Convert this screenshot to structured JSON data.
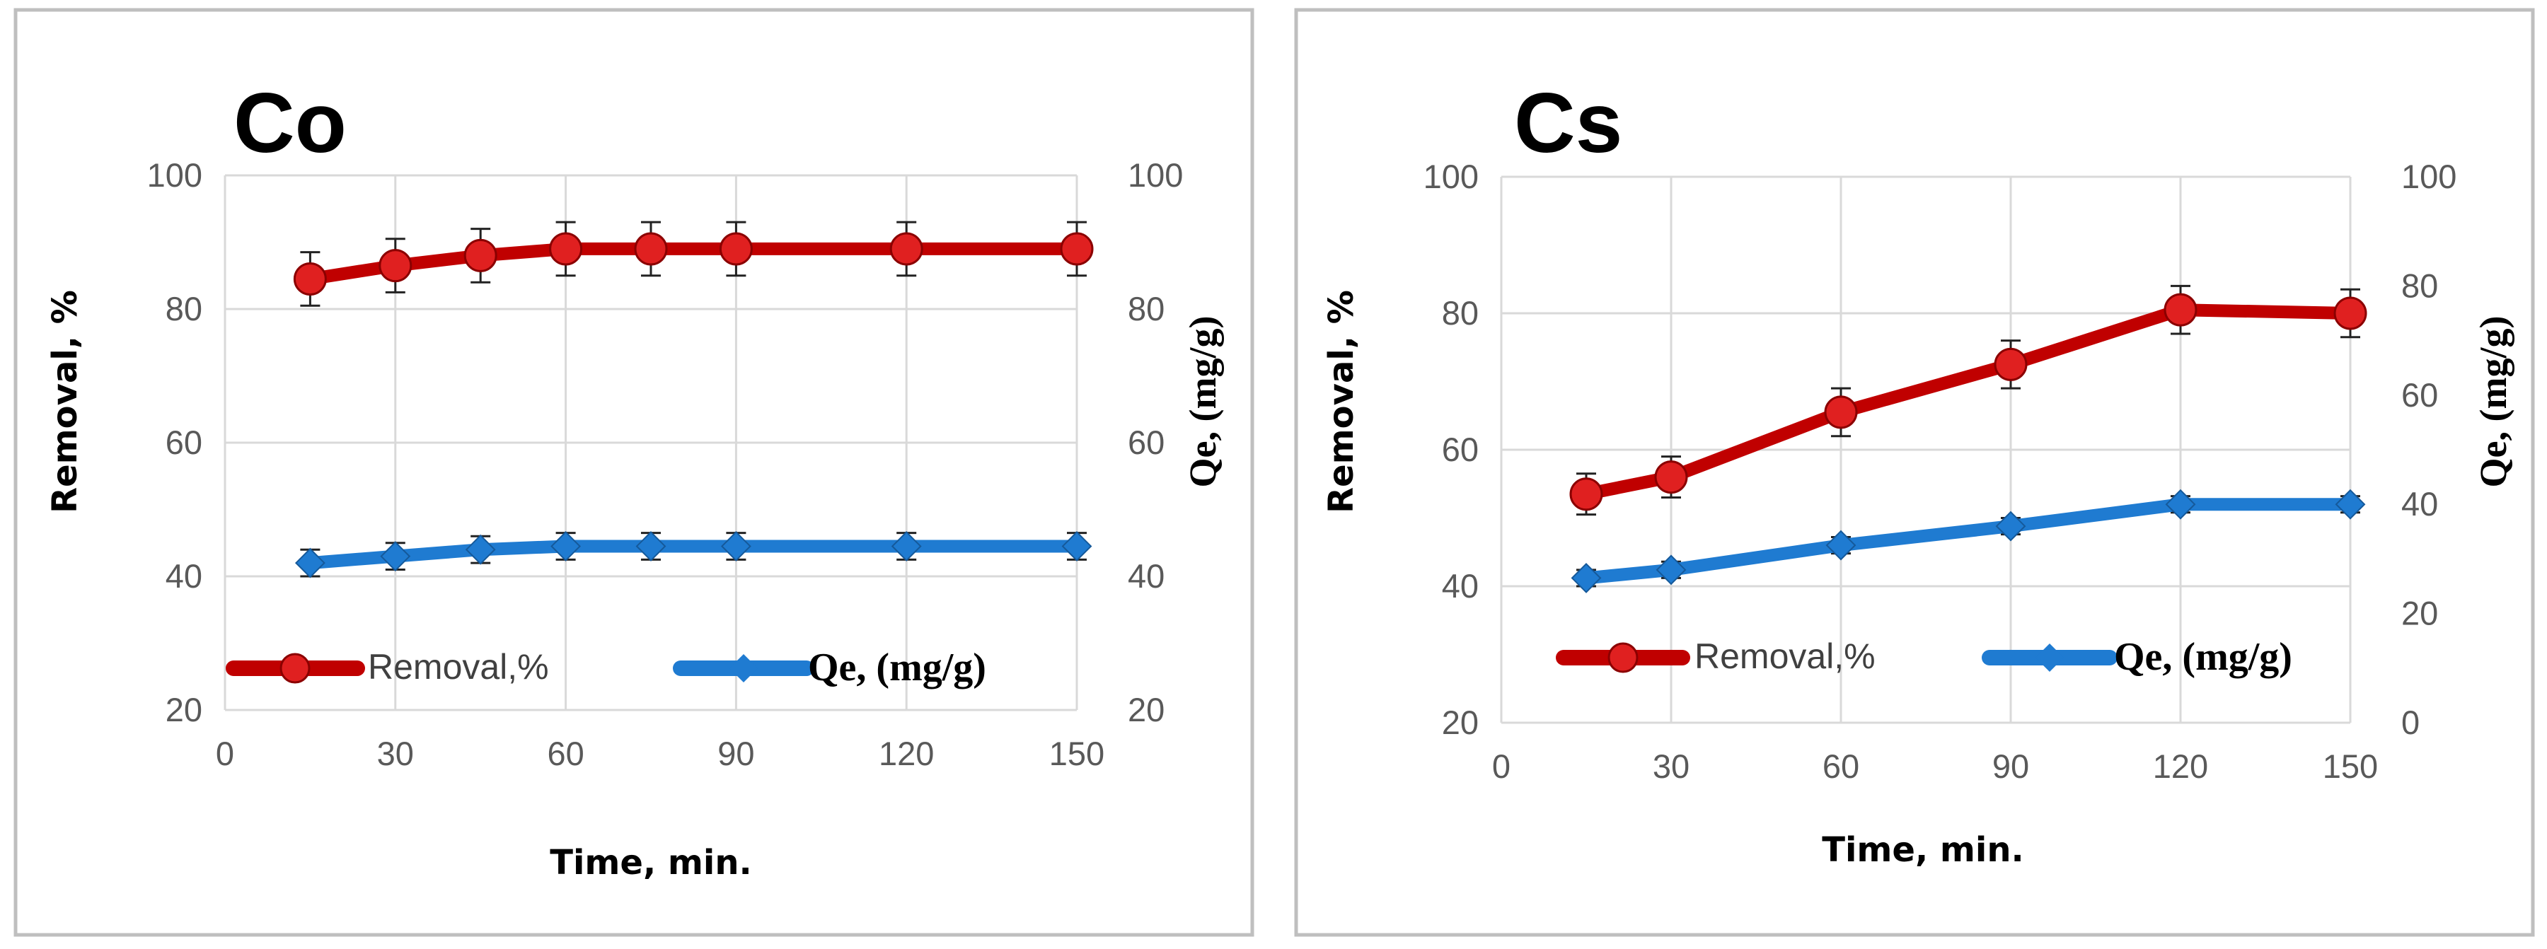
{
  "colors": {
    "removal": "#c00000",
    "removal_marker": "#e02020",
    "qe": "#1f7bd1",
    "grid": "#d9d9d9",
    "frame": "#bfbfbf"
  },
  "chart_data": [
    {
      "type": "line",
      "title": "Co",
      "xlabel": "Time, min.",
      "ylabel": "Removal, %",
      "y2label": "Qe, (mg/g)",
      "xlim": [
        0,
        150
      ],
      "ylim": [
        20,
        100
      ],
      "y2lim": [
        20,
        100
      ],
      "xticks": [
        "0",
        "30",
        "60",
        "90",
        "120",
        "150"
      ],
      "yticks": [
        "20",
        "40",
        "60",
        "80",
        "100"
      ],
      "y2ticks": [
        "20",
        "40",
        "60",
        "80",
        "100"
      ],
      "xtick_values": [
        0,
        30,
        60,
        90,
        120,
        150
      ],
      "ytick_values": [
        20,
        40,
        60,
        80,
        100
      ],
      "y2tick_values": [
        20,
        40,
        60,
        80,
        100
      ],
      "legend": {
        "position": "bottom",
        "removal_label": "Removal,%",
        "qe_label": "Qe, (mg/g)"
      },
      "series": [
        {
          "name": "Removal,%",
          "axis": "left",
          "x": [
            15,
            30,
            45,
            60,
            75,
            90,
            120,
            150
          ],
          "values": [
            84.5,
            86.5,
            88,
            89,
            89,
            89,
            89,
            89
          ],
          "errors": [
            4,
            4,
            4,
            4,
            4,
            4,
            4,
            4
          ]
        },
        {
          "name": "Qe, (mg/g)",
          "axis": "right",
          "x": [
            15,
            30,
            45,
            60,
            75,
            90,
            120,
            150
          ],
          "values": [
            42,
            43,
            44,
            44.5,
            44.5,
            44.5,
            44.5,
            44.5
          ],
          "errors": [
            2,
            2,
            2,
            2,
            2,
            2,
            2,
            2
          ]
        }
      ]
    },
    {
      "type": "line",
      "title": "Cs",
      "xlabel": "Time, min.",
      "ylabel": "Removal, %",
      "y2label": "Qe, (mg/g)",
      "xlim": [
        0,
        150
      ],
      "ylim": [
        20,
        100
      ],
      "y2lim": [
        0,
        100
      ],
      "xticks": [
        "0",
        "30",
        "60",
        "90",
        "120",
        "150"
      ],
      "yticks": [
        "20",
        "40",
        "60",
        "80",
        "100"
      ],
      "y2ticks": [
        "0",
        "20",
        "40",
        "60",
        "80",
        "100"
      ],
      "xtick_values": [
        0,
        30,
        60,
        90,
        120,
        150
      ],
      "ytick_values": [
        20,
        40,
        60,
        80,
        100
      ],
      "y2tick_values": [
        0,
        20,
        40,
        60,
        80,
        100
      ],
      "legend": {
        "position": "bottom",
        "removal_label": "Removal,%",
        "qe_label": "Qe, (mg/g)"
      },
      "series": [
        {
          "name": "Removal,%",
          "axis": "left",
          "x": [
            15,
            30,
            60,
            90,
            120,
            150
          ],
          "values": [
            53.5,
            56,
            65.5,
            72.5,
            80.5,
            80
          ],
          "errors": [
            3,
            3,
            3.5,
            3.5,
            3.5,
            3.5
          ]
        },
        {
          "name": "Qe, (mg/g)",
          "axis": "right",
          "x": [
            15,
            30,
            60,
            90,
            120,
            150
          ],
          "values": [
            26.5,
            28,
            32.5,
            36,
            40,
            40
          ],
          "errors": [
            1.5,
            1.5,
            1.5,
            1.5,
            1.5,
            1.5
          ]
        }
      ]
    }
  ]
}
